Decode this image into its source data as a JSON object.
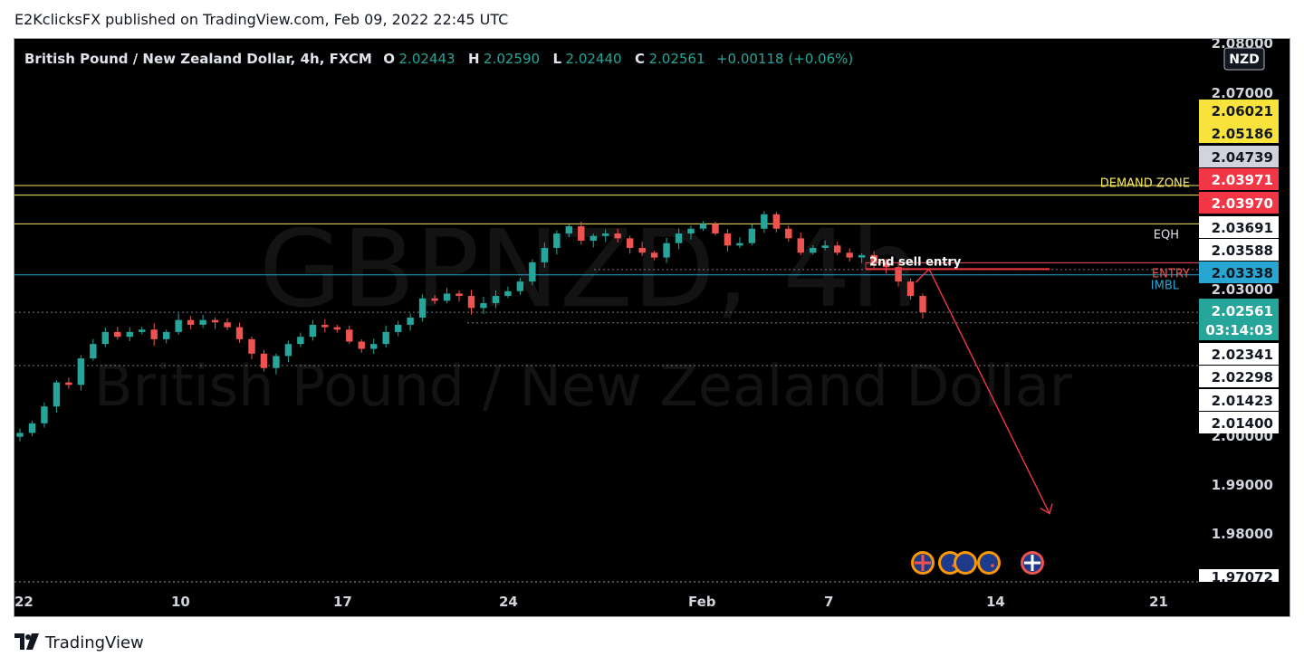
{
  "header": {
    "published_line": "E2KclicksFX published on TradingView.com, Feb 09, 2022 22:45 UTC"
  },
  "footer": {
    "brand": "TradingView"
  },
  "watermark": {
    "symbol": "GBPNZD, 4h",
    "description": "British Pound / New Zealand Dollar"
  },
  "legend": {
    "title": "British Pound / New Zealand Dollar, 4h, FXCM",
    "open_label": "O",
    "open": "2.02443",
    "high_label": "H",
    "high": "2.02590",
    "low_label": "L",
    "low": "2.02440",
    "close_label": "C",
    "close": "2.02561",
    "change": "+0.00118 (+0.06%)"
  },
  "currency_button": "NZD",
  "colors": {
    "up": "#26a69a",
    "down": "#ef5350",
    "demand": "#f5e663",
    "imbl": "#26a6d1",
    "entry": "#ef5350",
    "eqh": "#e0e3eb"
  },
  "chart_data": {
    "type": "candlestick",
    "x_axis_labels": [
      "22",
      "10",
      "17",
      "24",
      "Feb",
      "7",
      "14",
      "21"
    ],
    "y_axis": {
      "range": [
        1.9695,
        2.0825
      ],
      "ticks": [
        "2.08000",
        "2.07000",
        "2.03000",
        "2.00000",
        "1.99000",
        "1.98000"
      ]
    },
    "current_price": {
      "value": "2.02561",
      "countdown": "03:14:03"
    },
    "bottom_badge": "1.97072",
    "price_badges": [
      {
        "value": "2.06021",
        "style": "yellow"
      },
      {
        "value": "2.05186",
        "style": "yellow"
      },
      {
        "value": "2.04739",
        "style": "grey"
      },
      {
        "value": "2.03971",
        "style": "red"
      },
      {
        "value": "2.03970",
        "style": "red"
      },
      {
        "value": "2.03691",
        "style": "white"
      },
      {
        "value": "2.03588",
        "style": "white"
      },
      {
        "value": "2.03338",
        "style": "blue"
      },
      {
        "value": "2.02341",
        "style": "white"
      },
      {
        "value": "2.02298",
        "style": "white"
      },
      {
        "value": "2.01423",
        "style": "white"
      },
      {
        "value": "2.01400",
        "style": "white"
      }
    ],
    "levels": [
      {
        "label": "DEMAND ZONE",
        "price": 2.05
      },
      {
        "label": "EQH",
        "price": 2.044
      },
      {
        "label": "ENTRY",
        "price": 2.0359
      },
      {
        "label": "IMBL",
        "price": 2.0334
      }
    ],
    "annotations": [
      {
        "text": "2nd sell entry",
        "price": 2.0346
      }
    ],
    "ohlc_path": [
      2.0005,
      2.0025,
      2.006,
      2.011,
      2.0105,
      2.016,
      2.019,
      2.0215,
      2.0205,
      2.0215,
      2.022,
      2.02,
      2.0215,
      2.024,
      2.023,
      2.024,
      2.0235,
      2.0225,
      2.02,
      2.017,
      2.014,
      2.0165,
      2.019,
      2.0205,
      2.023,
      2.0225,
      2.022,
      2.0195,
      2.018,
      2.019,
      2.0215,
      2.023,
      2.0245,
      2.0285,
      2.028,
      2.0295,
      2.029,
      2.0265,
      2.0275,
      2.029,
      2.03,
      2.032,
      2.036,
      2.039,
      2.042,
      2.0435,
      2.0405,
      2.0415,
      2.042,
      2.041,
      2.039,
      2.038,
      2.037,
      2.04,
      2.042,
      2.043,
      2.044,
      2.042,
      2.0395,
      2.04,
      2.043,
      2.046,
      2.043,
      2.041,
      2.038,
      2.039,
      2.0395,
      2.038,
      2.037,
      2.0375,
      2.036,
      2.035,
      2.032,
      2.029,
      2.0256
    ]
  }
}
